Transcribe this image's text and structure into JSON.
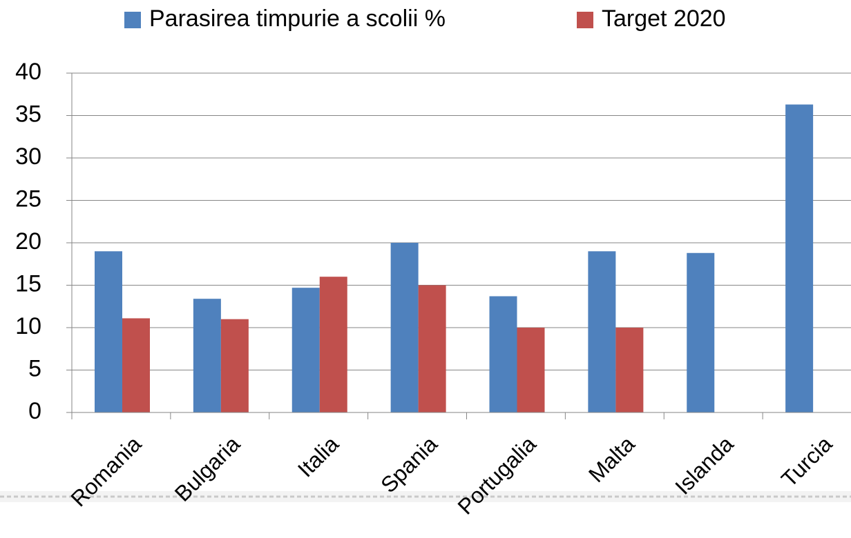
{
  "chart_data": {
    "type": "bar",
    "categories": [
      "Romania",
      "Bulgaria",
      "Italia",
      "Spania",
      "Portugalia",
      "Malta",
      "Islanda",
      "Turcia"
    ],
    "series": [
      {
        "name": "Parasirea timpurie a scolii %",
        "color": "#4f81bd",
        "values": [
          19.0,
          13.4,
          14.7,
          20.0,
          13.7,
          19.0,
          18.8,
          36.3
        ]
      },
      {
        "name": "Target 2020",
        "color": "#c0504d",
        "values": [
          11.1,
          11,
          16,
          15,
          10,
          10,
          null,
          null
        ]
      }
    ],
    "ylim": [
      0,
      40
    ],
    "yticks": [
      0,
      5,
      10,
      15,
      20,
      25,
      30,
      35,
      40
    ],
    "grid": true,
    "legend": "top"
  }
}
